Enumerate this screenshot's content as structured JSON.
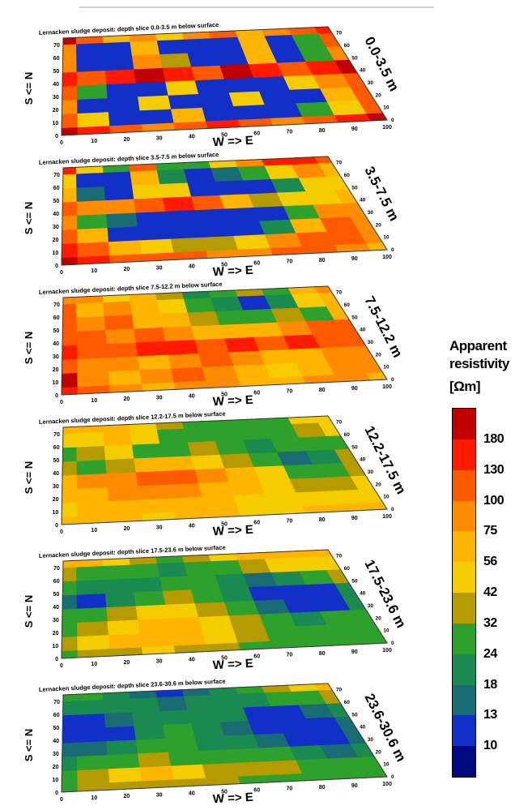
{
  "chart_data": {
    "type": "heatmap",
    "legend": {
      "title_lines": [
        "Apparent",
        "resistivity",
        "[Ωm]"
      ],
      "tick_labels": [
        "180",
        "130",
        "100",
        "75",
        "56",
        "42",
        "32",
        "24",
        "18",
        "13",
        "10"
      ],
      "colors": [
        "#c00000",
        "#ff1a00",
        "#ff5a00",
        "#ff8c00",
        "#ffb400",
        "#f5cc00",
        "#b59a00",
        "#2ea02c",
        "#1b8a50",
        "#1a6c74",
        "#1230c8",
        "#000a80"
      ],
      "placement": "right"
    },
    "x_axis": {
      "label": "W => E",
      "ticks": [
        "0",
        "10",
        "20",
        "30",
        "40",
        "50",
        "60",
        "70",
        "80",
        "90",
        "100"
      ],
      "range": [
        0,
        100
      ]
    },
    "y_axis": {
      "label": "S <= N",
      "ticks": [
        "0",
        "10",
        "20",
        "30",
        "40",
        "50",
        "60",
        "70"
      ],
      "range": [
        0,
        75
      ]
    },
    "depth_axis_ticks": [
      "0",
      "10",
      "20",
      "30",
      "40",
      "50",
      "60",
      "70"
    ],
    "slices": [
      {
        "title": "Lernacken sludge deposit: depth slice 0.0-3.5 m below surface",
        "depth_label": "0.0-3.5 m",
        "grid_x": [
          0,
          10,
          20,
          30,
          40,
          50,
          60,
          70,
          80,
          90,
          100
        ],
        "grid_y": [
          75,
          65,
          55,
          45,
          35,
          25,
          15,
          5
        ],
        "grid": [
          [
            180,
            100,
            56,
            75,
            42,
            75,
            100,
            56,
            75,
            100,
            130
          ],
          [
            75,
            10,
            10,
            56,
            10,
            10,
            10,
            56,
            10,
            24,
            100
          ],
          [
            75,
            10,
            10,
            75,
            32,
            10,
            10,
            56,
            10,
            24,
            75
          ],
          [
            130,
            100,
            130,
            180,
            130,
            100,
            180,
            130,
            100,
            130,
            180
          ],
          [
            100,
            24,
            10,
            10,
            42,
            10,
            10,
            10,
            42,
            75,
            100
          ],
          [
            75,
            10,
            10,
            42,
            10,
            10,
            42,
            10,
            10,
            56,
            100
          ],
          [
            100,
            42,
            10,
            10,
            56,
            10,
            10,
            10,
            24,
            42,
            100
          ],
          [
            180,
            130,
            100,
            75,
            100,
            130,
            100,
            75,
            100,
            130,
            180
          ]
        ]
      },
      {
        "title": "Lernacken sludge deposit: depth slice 3.5-7.5 m below surface",
        "depth_label": "3.5-7.5 m",
        "grid_x": [
          0,
          10,
          20,
          30,
          40,
          50,
          60,
          70,
          80,
          90,
          100
        ],
        "grid_y": [
          75,
          65,
          55,
          45,
          35,
          25,
          15,
          5
        ],
        "grid": [
          [
            130,
            42,
            24,
            100,
            24,
            24,
            42,
            75,
            130,
            130,
            100
          ],
          [
            42,
            10,
            10,
            56,
            18,
            10,
            13,
            24,
            42,
            75,
            56
          ],
          [
            56,
            13,
            10,
            42,
            42,
            10,
            10,
            10,
            18,
            42,
            42
          ],
          [
            100,
            75,
            75,
            100,
            130,
            100,
            56,
            32,
            42,
            42,
            56
          ],
          [
            75,
            24,
            13,
            10,
            10,
            10,
            10,
            10,
            24,
            75,
            75
          ],
          [
            100,
            56,
            10,
            10,
            10,
            10,
            10,
            18,
            56,
            100,
            75
          ],
          [
            130,
            100,
            56,
            42,
            32,
            32,
            42,
            75,
            100,
            100,
            75
          ],
          [
            180,
            130,
            100,
            100,
            100,
            75,
            75,
            100,
            100,
            75,
            56
          ]
        ]
      },
      {
        "title": "Lernacken sludge deposit: depth slice 7.5-12.2 m below surface",
        "depth_label": "7.5-12.2 m",
        "grid_x": [
          0,
          10,
          20,
          30,
          40,
          50,
          60,
          70,
          80,
          90,
          100
        ],
        "grid_y": [
          75,
          65,
          55,
          45,
          35,
          25,
          15,
          5
        ],
        "grid": [
          [
            75,
            75,
            42,
            56,
            32,
            18,
            24,
            32,
            24,
            56,
            75
          ],
          [
            100,
            56,
            75,
            56,
            42,
            24,
            18,
            10,
            18,
            42,
            56
          ],
          [
            100,
            75,
            100,
            56,
            56,
            32,
            24,
            24,
            32,
            24,
            56
          ],
          [
            100,
            100,
            75,
            100,
            75,
            56,
            56,
            56,
            75,
            100,
            100
          ],
          [
            130,
            100,
            100,
            130,
            130,
            100,
            130,
            100,
            130,
            100,
            100
          ],
          [
            100,
            75,
            75,
            56,
            75,
            100,
            75,
            56,
            56,
            75,
            75
          ],
          [
            180,
            75,
            56,
            75,
            100,
            75,
            56,
            42,
            56,
            75,
            75
          ],
          [
            130,
            100,
            75,
            56,
            75,
            75,
            56,
            56,
            75,
            75,
            56
          ]
        ]
      },
      {
        "title": "Lernacken sludge deposit: depth slice 12.2-17.5 m below surface",
        "depth_label": "12.2-17.5 m",
        "grid_x": [
          0,
          10,
          20,
          30,
          40,
          50,
          60,
          70,
          80,
          90,
          100
        ],
        "grid_y": [
          75,
          65,
          55,
          45,
          35,
          25,
          15,
          5
        ],
        "grid": [
          [
            56,
            56,
            56,
            42,
            32,
            24,
            24,
            24,
            24,
            42,
            42
          ],
          [
            42,
            42,
            56,
            42,
            24,
            24,
            24,
            24,
            24,
            32,
            42
          ],
          [
            24,
            32,
            42,
            24,
            24,
            32,
            24,
            18,
            24,
            24,
            24
          ],
          [
            32,
            24,
            32,
            56,
            56,
            42,
            32,
            24,
            13,
            18,
            32
          ],
          [
            56,
            75,
            75,
            100,
            100,
            75,
            56,
            42,
            24,
            24,
            32
          ],
          [
            56,
            56,
            75,
            75,
            75,
            56,
            56,
            42,
            32,
            32,
            42
          ],
          [
            42,
            56,
            56,
            56,
            56,
            56,
            42,
            42,
            42,
            42,
            42
          ],
          [
            56,
            56,
            56,
            42,
            56,
            56,
            42,
            42,
            56,
            56,
            56
          ]
        ]
      },
      {
        "title": "Lernacken sludge deposit: depth slice 17.5-23.6 m below surface",
        "depth_label": "17.5-23.6 m",
        "grid_x": [
          0,
          10,
          20,
          30,
          40,
          50,
          60,
          70,
          80,
          90,
          100
        ],
        "grid_y": [
          75,
          65,
          55,
          45,
          35,
          25,
          15,
          5
        ],
        "grid": [
          [
            56,
            56,
            42,
            32,
            24,
            32,
            42,
            56,
            56,
            56,
            56
          ],
          [
            32,
            24,
            24,
            24,
            18,
            24,
            24,
            32,
            42,
            42,
            42
          ],
          [
            24,
            18,
            18,
            18,
            24,
            24,
            18,
            13,
            18,
            24,
            32
          ],
          [
            13,
            10,
            18,
            24,
            32,
            24,
            18,
            10,
            10,
            10,
            18
          ],
          [
            24,
            24,
            32,
            42,
            42,
            32,
            24,
            13,
            10,
            10,
            18
          ],
          [
            24,
            32,
            42,
            56,
            56,
            42,
            32,
            24,
            18,
            24,
            24
          ],
          [
            32,
            42,
            56,
            56,
            56,
            42,
            32,
            24,
            24,
            24,
            24
          ],
          [
            24,
            32,
            32,
            42,
            32,
            32,
            24,
            24,
            24,
            24,
            24
          ]
        ]
      },
      {
        "title": "Lernacken sludge deposit: depth slice 23.6-30.6 m below surface",
        "depth_label": "23.6-30.6 m",
        "grid_x": [
          0,
          10,
          20,
          30,
          40,
          50,
          60,
          70,
          80,
          90,
          100
        ],
        "grid_y": [
          75,
          65,
          55,
          45,
          35,
          25,
          15,
          5
        ],
        "grid": [
          [
            24,
            24,
            18,
            13,
            10,
            13,
            18,
            24,
            32,
            42,
            56
          ],
          [
            18,
            18,
            18,
            18,
            13,
            18,
            18,
            18,
            24,
            24,
            32
          ],
          [
            10,
            10,
            13,
            18,
            18,
            18,
            18,
            10,
            10,
            13,
            18
          ],
          [
            10,
            10,
            10,
            18,
            24,
            18,
            13,
            10,
            10,
            10,
            13
          ],
          [
            13,
            13,
            18,
            24,
            24,
            18,
            18,
            13,
            10,
            10,
            13
          ],
          [
            18,
            24,
            24,
            32,
            24,
            24,
            24,
            24,
            18,
            13,
            18
          ],
          [
            24,
            32,
            42,
            56,
            42,
            32,
            32,
            32,
            24,
            24,
            24
          ],
          [
            24,
            32,
            32,
            32,
            32,
            32,
            24,
            24,
            24,
            24,
            24
          ]
        ]
      }
    ]
  }
}
